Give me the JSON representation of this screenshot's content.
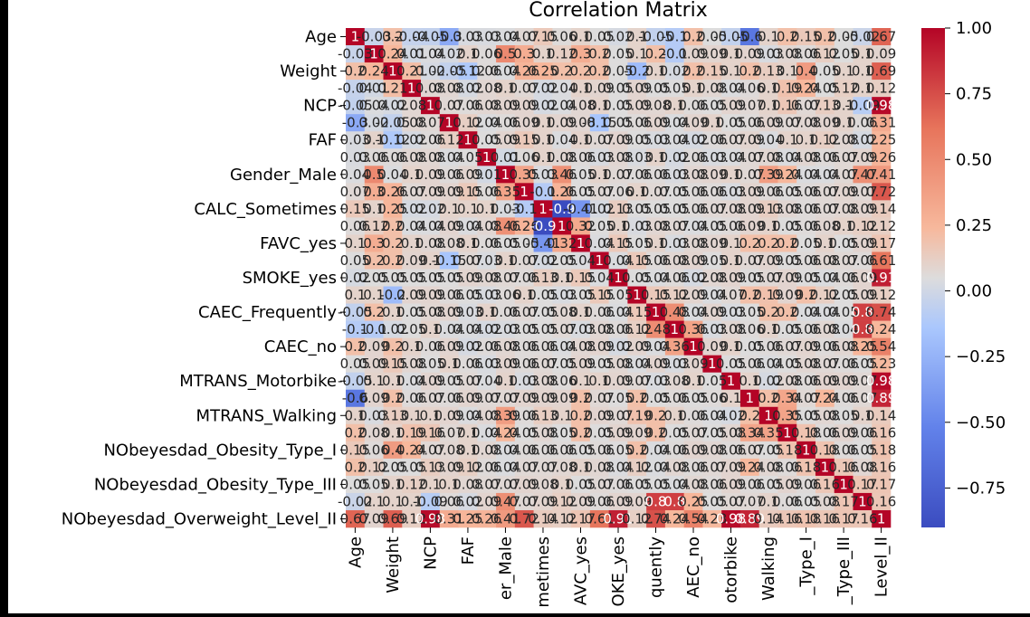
{
  "chart_data": {
    "type": "heatmap",
    "title": "Correlation Matrix",
    "colormap": "coolwarm",
    "vmin": -0.9,
    "vmax": 1.0,
    "colorbar_ticks": [
      1.0,
      0.75,
      0.5,
      0.25,
      0.0,
      -0.25,
      -0.5,
      -0.75
    ],
    "colorbar_tick_labels": [
      "1.00",
      "0.75",
      "0.50",
      "0.25",
      "0.00",
      "−0.25",
      "−0.50",
      "−0.75"
    ],
    "y_tick_labels": [
      "Age",
      "Weight",
      "NCP",
      "FAF",
      "Gender_Male",
      "CALC_Sometimes",
      "FAVC_yes",
      "SMOKE_yes",
      "CAEC_Frequently",
      "CAEC_no",
      "MTRANS_Motorbike",
      "MTRANS_Walking",
      "NObeyesdad_Obesity_Type_I",
      "NObeyesdad_Obesity_Type_III",
      "NObeyesdad_Overweight_Level_II"
    ],
    "x_tick_labels": [
      "Age",
      "Weight",
      "NCP",
      "FAF",
      "er_Male",
      "metimes",
      "AVC_yes",
      "OKE_yes",
      "quently",
      "AEC_no",
      "otorbike",
      "Walking",
      "_Type_I",
      "_Type_III",
      "Level_II"
    ],
    "n_vars": 29,
    "values": [
      [
        1,
        -0.03,
        0.2,
        -0.04,
        -0.05,
        -0.3,
        0.03,
        0.03,
        0.04,
        0.07,
        0.15,
        0.06,
        0.1,
        0.05,
        0.02,
        0.1,
        -0.05,
        -0.1,
        0.2,
        0.05,
        -0.05,
        -0.6,
        0.1,
        0.2,
        0.15,
        0.2,
        0.05,
        -0.02,
        0.67
      ],
      [
        -0.03,
        1,
        0.24,
        0.01,
        0.04,
        0.02,
        0.1,
        0.06,
        0.5,
        0.3,
        0.1,
        0.12,
        0.3,
        0.2,
        0.05,
        0.1,
        0.2,
        -0.1,
        0.09,
        0.09,
        0.1,
        0.09,
        0.03,
        0.08,
        0.06,
        0.12,
        0.05,
        0.1,
        0.09
      ],
      [
        0.2,
        0.24,
        1,
        0.21,
        0.02,
        -0.05,
        -0.12,
        0.06,
        0.04,
        0.26,
        0.25,
        0.2,
        0.2,
        0.2,
        0.05,
        -0.2,
        0.1,
        0.02,
        0.2,
        0.15,
        0.1,
        0.2,
        0.13,
        0.1,
        0.4,
        0.05,
        0.1,
        0.1,
        0.69
      ],
      [
        -0.04,
        0.01,
        0.21,
        1,
        0.08,
        0.08,
        0.02,
        0.08,
        0.1,
        0.07,
        0.02,
        0.04,
        0.1,
        0.09,
        0.05,
        0.09,
        0.05,
        0.05,
        0.1,
        0.08,
        0.04,
        0.06,
        0.1,
        0.19,
        0.24,
        0.05,
        0.12,
        0.1,
        0.12
      ],
      [
        -0.05,
        0.04,
        0.02,
        0.08,
        1,
        0.07,
        0.06,
        0.08,
        0.09,
        0.09,
        0.02,
        0.04,
        0.08,
        0.1,
        0.05,
        0.09,
        0.08,
        0.1,
        0.06,
        0.05,
        0.09,
        0.07,
        0.1,
        0.16,
        0.07,
        0.13,
        0.1,
        -0.09,
        0.98
      ],
      [
        -0.3,
        0.02,
        -0.05,
        0.08,
        0.07,
        1,
        0.12,
        0.04,
        0.06,
        0.09,
        0.1,
        0.09,
        0.08,
        -0.15,
        0.05,
        0.06,
        0.09,
        0.04,
        0.09,
        0.1,
        0.05,
        0.06,
        0.09,
        0.07,
        0.08,
        0.09,
        0.1,
        0.06,
        0.31
      ],
      [
        0.03,
        0.1,
        -0.12,
        0.02,
        0.06,
        0.12,
        1,
        0.05,
        0.09,
        0.15,
        0.1,
        0.04,
        0.1,
        0.07,
        0.09,
        0.05,
        0.03,
        0.04,
        0.02,
        0.06,
        0.07,
        0.09,
        0.04,
        0.1,
        0.1,
        0.12,
        0.08,
        0.02,
        0.25
      ],
      [
        0.03,
        0.06,
        0.06,
        0.08,
        0.08,
        0.04,
        0.05,
        1,
        0.01,
        0.06,
        0.1,
        0.08,
        0.06,
        0.03,
        0.08,
        0.03,
        0.1,
        0.02,
        0.06,
        0.03,
        0.04,
        0.07,
        0.08,
        0.04,
        0.08,
        0.06,
        0.07,
        0.09,
        0.26
      ],
      [
        0.04,
        0.5,
        0.04,
        0.1,
        0.09,
        0.06,
        0.09,
        0.01,
        1,
        0.35,
        0.03,
        0.46,
        0.05,
        0.1,
        0.07,
        0.06,
        0.06,
        0.03,
        0.08,
        0.09,
        0.1,
        0.07,
        0.39,
        0.24,
        0.04,
        0.04,
        0.07,
        0.47,
        0.41
      ],
      [
        0.07,
        0.3,
        0.26,
        0.07,
        0.09,
        0.09,
        0.15,
        0.06,
        0.35,
        1,
        -0.1,
        0.26,
        0.05,
        0.07,
        0.06,
        0.1,
        0.07,
        0.05,
        0.06,
        0.06,
        0.03,
        0.09,
        0.06,
        0.05,
        0.06,
        0.07,
        0.09,
        0.07,
        0.72
      ],
      [
        0.15,
        0.1,
        0.25,
        0.02,
        0.02,
        0.1,
        0.1,
        0.1,
        0.03,
        -0.1,
        1,
        -0.9,
        -0.41,
        0.02,
        0.13,
        0.05,
        0.05,
        0.05,
        0.06,
        0.07,
        0.08,
        0.09,
        0.13,
        0.08,
        0.06,
        0.07,
        0.08,
        0.09,
        0.14
      ],
      [
        0.06,
        0.12,
        0.2,
        0.04,
        0.04,
        0.09,
        0.04,
        0.08,
        0.46,
        0.26,
        -0.9,
        1,
        0.32,
        0.05,
        0.1,
        0.03,
        0.08,
        0.07,
        0.04,
        0.05,
        0.06,
        0.09,
        0.1,
        0.05,
        0.06,
        0.08,
        0.1,
        0.12,
        0.12
      ],
      [
        0.1,
        0.3,
        0.2,
        0.1,
        0.08,
        0.08,
        0.1,
        0.06,
        0.05,
        0.05,
        -0.41,
        0.32,
        1,
        0.04,
        0.15,
        0.05,
        0.1,
        0.03,
        0.08,
        0.09,
        0.1,
        0.2,
        0.2,
        0.2,
        0.05,
        0.1,
        0.05,
        0.09,
        0.17
      ],
      [
        0.05,
        0.2,
        0.2,
        0.09,
        0.1,
        -0.15,
        0.07,
        0.03,
        0.1,
        0.07,
        0.02,
        0.05,
        0.04,
        1,
        0.04,
        0.15,
        0.06,
        0.08,
        0.09,
        0.05,
        0.1,
        0.07,
        0.09,
        0.05,
        0.06,
        0.08,
        0.07,
        0.06,
        0.61
      ],
      [
        0.02,
        0.05,
        0.05,
        0.05,
        0.05,
        0.05,
        0.09,
        0.08,
        0.07,
        0.06,
        0.13,
        0.1,
        0.15,
        0.04,
        1,
        0.05,
        0.04,
        0.06,
        0.02,
        0.08,
        0.09,
        0.05,
        0.07,
        0.09,
        0.05,
        0.04,
        0.06,
        0.09,
        0.91
      ],
      [
        0.1,
        0.1,
        -0.2,
        0.09,
        0.09,
        0.06,
        0.05,
        0.03,
        0.06,
        0.1,
        0.05,
        0.03,
        0.05,
        0.15,
        0.05,
        1,
        0.15,
        0.12,
        0.09,
        0.04,
        0.07,
        0.2,
        0.19,
        0.09,
        0.2,
        0.12,
        0.05,
        0.09,
        0.12
      ],
      [
        -0.05,
        0.2,
        0.1,
        0.05,
        0.08,
        0.09,
        0.03,
        0.1,
        0.06,
        0.07,
        0.05,
        0.08,
        0.1,
        0.06,
        0.04,
        0.15,
        1,
        0.48,
        0.04,
        0.09,
        0.03,
        0.05,
        0.2,
        0.2,
        0.04,
        0.04,
        0.05,
        0.8,
        0.74
      ],
      [
        -0.1,
        -0.1,
        0.02,
        0.05,
        0.1,
        0.04,
        0.04,
        0.02,
        0.03,
        0.05,
        0.05,
        0.07,
        0.03,
        0.08,
        0.06,
        0.12,
        0.48,
        1,
        0.36,
        0.03,
        0.08,
        0.06,
        0.1,
        0.05,
        0.06,
        0.08,
        0.04,
        0.8,
        0.24
      ],
      [
        0.2,
        0.09,
        0.2,
        0.1,
        0.06,
        0.09,
        0.02,
        0.06,
        0.08,
        0.06,
        0.06,
        0.04,
        0.08,
        0.09,
        0.02,
        0.09,
        0.04,
        0.36,
        1,
        0.09,
        0.1,
        0.05,
        0.06,
        0.07,
        0.09,
        0.06,
        0.08,
        0.25,
        0.54
      ],
      [
        0.05,
        0.09,
        0.15,
        0.08,
        0.05,
        0.1,
        0.06,
        0.03,
        0.09,
        0.06,
        0.07,
        0.05,
        0.09,
        0.05,
        0.08,
        0.04,
        0.09,
        0.03,
        0.09,
        1,
        0.05,
        0.06,
        0.04,
        0.05,
        0.08,
        0.07,
        0.06,
        0.05,
        0.23
      ],
      [
        -0.05,
        0.1,
        0.1,
        0.04,
        0.09,
        0.05,
        0.07,
        0.04,
        0.1,
        0.03,
        0.08,
        0.06,
        0.1,
        0.1,
        0.09,
        0.07,
        0.03,
        0.08,
        0.1,
        0.05,
        1,
        0.1,
        0.02,
        0.08,
        0.06,
        0.09,
        0.09,
        0.07,
        0.98
      ],
      [
        -0.6,
        0.09,
        0.2,
        0.06,
        0.07,
        0.06,
        0.09,
        0.07,
        0.07,
        0.09,
        0.09,
        0.09,
        0.2,
        0.07,
        0.05,
        0.2,
        0.05,
        0.06,
        0.05,
        0.06,
        0.1,
        1,
        0.2,
        0.34,
        0.07,
        0.24,
        0.06,
        0.07,
        0.89
      ],
      [
        0.1,
        0.03,
        0.13,
        0.1,
        0.1,
        0.09,
        0.04,
        0.08,
        0.39,
        0.06,
        0.13,
        0.1,
        0.2,
        0.09,
        0.07,
        0.19,
        0.2,
        0.1,
        0.06,
        0.04,
        0.02,
        0.2,
        1,
        0.35,
        0.05,
        0.08,
        0.05,
        0.1,
        0.14
      ],
      [
        0.2,
        0.08,
        0.1,
        0.19,
        0.16,
        0.07,
        0.1,
        0.04,
        0.24,
        0.05,
        0.08,
        0.05,
        0.2,
        0.05,
        0.09,
        0.09,
        0.2,
        0.05,
        0.07,
        0.05,
        0.08,
        0.34,
        0.35,
        1,
        0.18,
        0.06,
        0.09,
        0.06,
        0.16
      ],
      [
        0.15,
        0.06,
        0.4,
        0.24,
        0.07,
        0.08,
        0.1,
        0.08,
        0.04,
        0.06,
        0.06,
        0.06,
        0.05,
        0.06,
        0.05,
        0.2,
        0.04,
        0.06,
        0.09,
        0.08,
        0.06,
        0.07,
        0.05,
        0.18,
        1,
        0.18,
        0.06,
        0.05,
        0.18
      ],
      [
        0.2,
        0.12,
        0.05,
        0.05,
        0.13,
        0.09,
        0.12,
        0.06,
        0.04,
        0.07,
        0.07,
        0.08,
        0.1,
        0.08,
        0.04,
        0.12,
        0.04,
        0.08,
        0.06,
        0.07,
        0.09,
        0.24,
        0.08,
        0.06,
        0.18,
        1,
        0.16,
        0.08,
        0.16
      ],
      [
        0.05,
        0.05,
        0.1,
        0.12,
        0.1,
        0.1,
        0.08,
        0.07,
        0.07,
        0.09,
        0.08,
        0.1,
        0.05,
        0.07,
        0.06,
        0.05,
        0.05,
        0.04,
        0.08,
        0.06,
        0.09,
        0.06,
        0.05,
        0.09,
        0.06,
        0.16,
        1,
        0.17,
        0.17
      ],
      [
        -0.02,
        0.1,
        0.1,
        0.1,
        -0.09,
        0.06,
        0.02,
        0.09,
        0.47,
        0.07,
        0.09,
        0.12,
        0.09,
        0.06,
        0.09,
        0.09,
        0.8,
        0.8,
        0.25,
        0.05,
        0.07,
        0.07,
        0.1,
        0.06,
        0.05,
        0.08,
        0.17,
        1,
        0.16
      ],
      [
        0.67,
        0.09,
        0.69,
        0.12,
        0.98,
        0.31,
        0.25,
        0.26,
        0.41,
        0.72,
        0.14,
        0.12,
        0.17,
        0.61,
        0.91,
        0.12,
        0.74,
        0.24,
        0.54,
        0.23,
        0.98,
        0.89,
        0.14,
        0.16,
        0.18,
        0.16,
        0.17,
        0.16,
        1
      ]
    ]
  }
}
